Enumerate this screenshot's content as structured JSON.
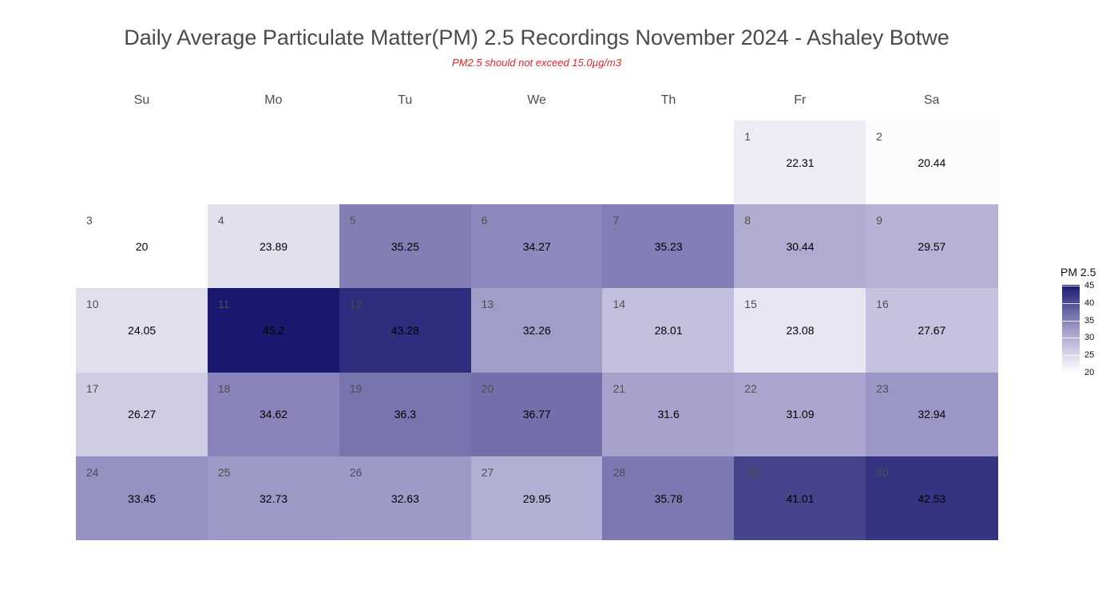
{
  "chart_data": {
    "type": "heatmap",
    "title": "Daily Average Particulate Matter(PM) 2.5 Recordings November 2024 -  Ashaley Botwe",
    "subtitle": "PM2.5 should not exceed 15.0µg/m3",
    "weekdays": [
      "Su",
      "Mo",
      "Tu",
      "We",
      "Th",
      "Fr",
      "Sa"
    ],
    "first_weekday_index": 5,
    "days": [
      {
        "day": 1,
        "value": 22.31
      },
      {
        "day": 2,
        "value": 20.44
      },
      {
        "day": 3,
        "value": 20
      },
      {
        "day": 4,
        "value": 23.89
      },
      {
        "day": 5,
        "value": 35.25
      },
      {
        "day": 6,
        "value": 34.27
      },
      {
        "day": 7,
        "value": 35.23
      },
      {
        "day": 8,
        "value": 30.44
      },
      {
        "day": 9,
        "value": 29.57
      },
      {
        "day": 10,
        "value": 24.05
      },
      {
        "day": 11,
        "value": 45.2
      },
      {
        "day": 12,
        "value": 43.28
      },
      {
        "day": 13,
        "value": 32.26
      },
      {
        "day": 14,
        "value": 28.01
      },
      {
        "day": 15,
        "value": 23.08
      },
      {
        "day": 16,
        "value": 27.67
      },
      {
        "day": 17,
        "value": 26.27
      },
      {
        "day": 18,
        "value": 34.62
      },
      {
        "day": 19,
        "value": 36.3
      },
      {
        "day": 20,
        "value": 36.77
      },
      {
        "day": 21,
        "value": 31.6
      },
      {
        "day": 22,
        "value": 31.09
      },
      {
        "day": 23,
        "value": 32.94
      },
      {
        "day": 24,
        "value": 33.45
      },
      {
        "day": 25,
        "value": 32.73
      },
      {
        "day": 26,
        "value": 32.63
      },
      {
        "day": 27,
        "value": 29.95
      },
      {
        "day": 28,
        "value": 35.78
      },
      {
        "day": 29,
        "value": 41.01
      },
      {
        "day": 30,
        "value": 42.53
      }
    ],
    "legend": {
      "title": "PM 2.5",
      "ticks": [
        45,
        40,
        35,
        30,
        25,
        20
      ],
      "range": [
        20,
        45.2
      ],
      "low_color": "#ffffff",
      "mid_color": "#9e9ac8",
      "high_color": "#191970"
    }
  }
}
